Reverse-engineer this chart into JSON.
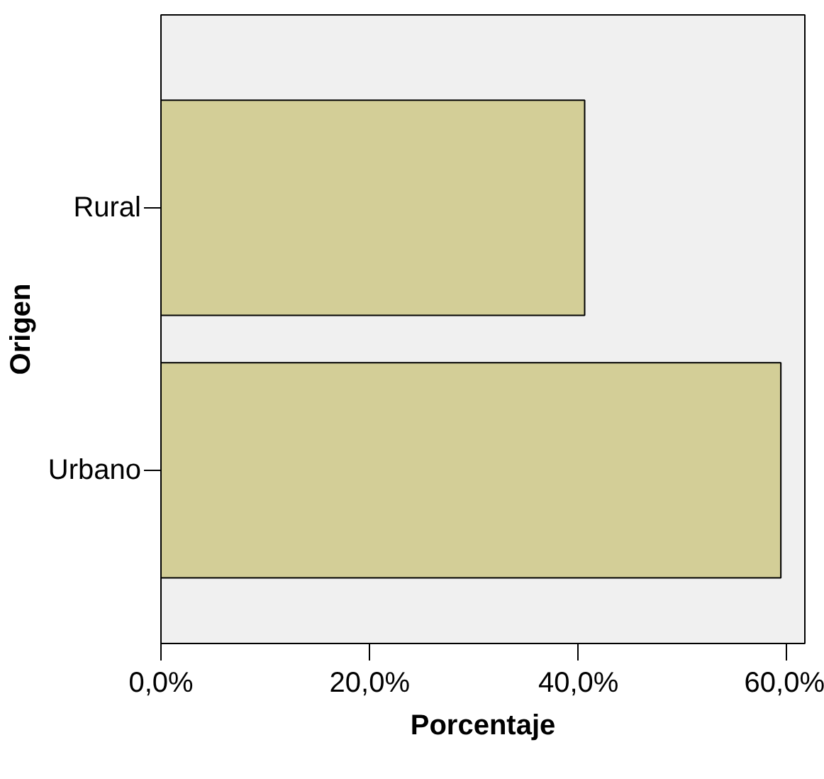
{
  "chart_data": {
    "type": "bar",
    "orientation": "horizontal",
    "xlabel": "Porcentaje",
    "ylabel": "Origen",
    "categories": [
      "Rural",
      "Urbano"
    ],
    "values": [
      40.6,
      59.4
    ],
    "color": "#d3ce97",
    "xlim": [
      0,
      61.7
    ],
    "xticks": [
      {
        "value": 0,
        "label": "0,0%"
      },
      {
        "value": 20,
        "label": "20,0%"
      },
      {
        "value": 40,
        "label": "40,0%"
      },
      {
        "value": 60,
        "label": "60,0%"
      }
    ],
    "grid": false
  }
}
